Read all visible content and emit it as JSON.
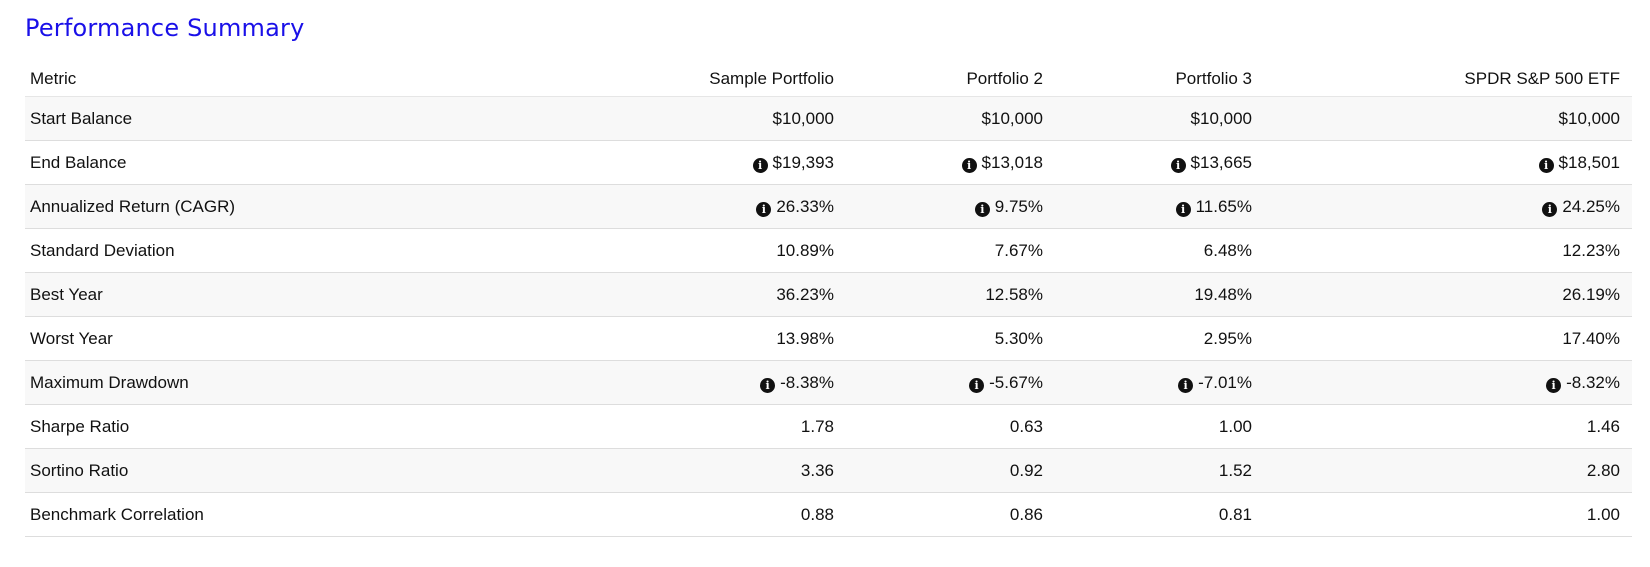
{
  "title": "Performance Summary",
  "columns": [
    "Metric",
    "Sample Portfolio",
    "Portfolio 2",
    "Portfolio 3",
    "SPDR S&P 500 ETF"
  ],
  "icons": {
    "info": "info-circle-icon",
    "info_glyph": "i"
  },
  "rows": [
    {
      "metric": "Start Balance",
      "info": false,
      "values": [
        "$10,000",
        "$10,000",
        "$10,000",
        "$10,000"
      ]
    },
    {
      "metric": "End Balance",
      "info": true,
      "values": [
        "$19,393",
        "$13,018",
        "$13,665",
        "$18,501"
      ]
    },
    {
      "metric": "Annualized Return (CAGR)",
      "info": true,
      "values": [
        "26.33%",
        "9.75%",
        "11.65%",
        "24.25%"
      ]
    },
    {
      "metric": "Standard Deviation",
      "info": false,
      "values": [
        "10.89%",
        "7.67%",
        "6.48%",
        "12.23%"
      ]
    },
    {
      "metric": "Best Year",
      "info": false,
      "values": [
        "36.23%",
        "12.58%",
        "19.48%",
        "26.19%"
      ]
    },
    {
      "metric": "Worst Year",
      "info": false,
      "values": [
        "13.98%",
        "5.30%",
        "2.95%",
        "17.40%"
      ]
    },
    {
      "metric": "Maximum Drawdown",
      "info": true,
      "values": [
        "-8.38%",
        "-5.67%",
        "-7.01%",
        "-8.32%"
      ]
    },
    {
      "metric": "Sharpe Ratio",
      "info": false,
      "values": [
        "1.78",
        "0.63",
        "1.00",
        "1.46"
      ]
    },
    {
      "metric": "Sortino Ratio",
      "info": false,
      "values": [
        "3.36",
        "0.92",
        "1.52",
        "2.80"
      ]
    },
    {
      "metric": "Benchmark Correlation",
      "info": false,
      "values": [
        "0.88",
        "0.86",
        "0.81",
        "1.00"
      ]
    }
  ],
  "colors": {
    "title": "#1a10e8",
    "row_alt": "#f8f8f8",
    "border": "#dddddd"
  }
}
